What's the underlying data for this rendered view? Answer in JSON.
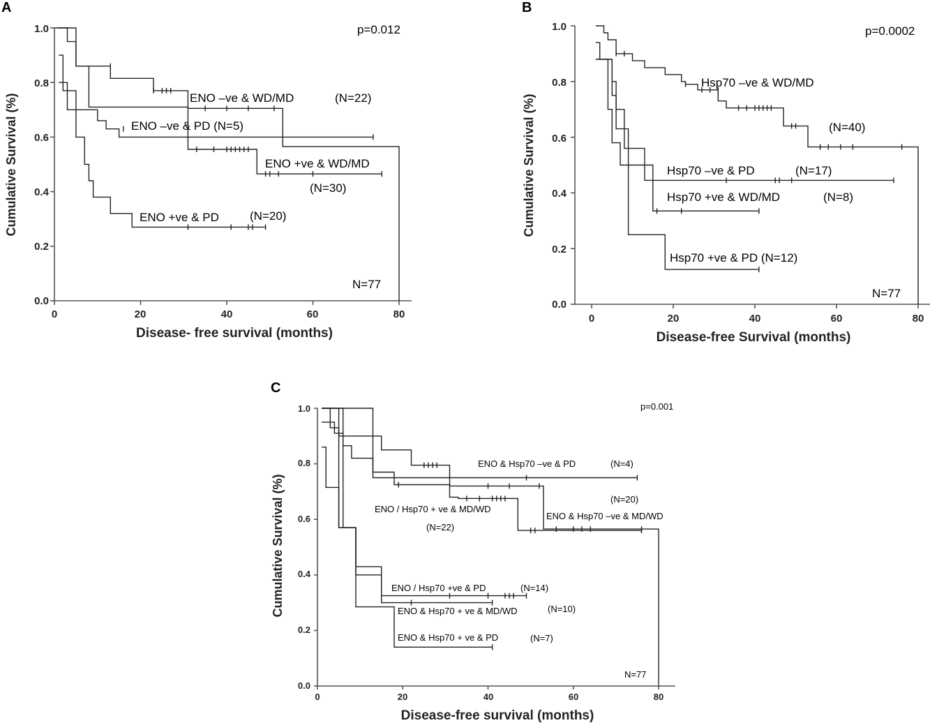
{
  "chart_data": [
    {
      "id": "A",
      "type": "line",
      "step": true,
      "panel_label": "A",
      "xlabel": "Disease- free survival (months)",
      "ylabel": "Cumulative Survival (%)",
      "xlim": [
        0,
        80
      ],
      "ylim": [
        0,
        1
      ],
      "xticks": [
        "0",
        "20",
        "40",
        "60",
        "80"
      ],
      "yticks": [
        "0.0",
        "0.2",
        "0.4",
        "0.6",
        "0.8",
        "1.0"
      ],
      "annotations": [
        "p=0.012",
        "N=77",
        "ENO –ve & WD/MD",
        "(N=22)",
        "ENO –ve & PD (N=5)",
        "ENO +ve & WD/MD",
        "(N=30)",
        "ENO +ve & PD",
        "(N=20)"
      ],
      "series": [
        {
          "x": [
            0,
            3,
            3,
            5,
            5,
            13,
            13,
            23,
            23,
            31,
            31,
            53,
            53,
            80,
            80
          ],
          "y": [
            1.0,
            1.0,
            0.95,
            0.95,
            0.86,
            0.86,
            0.815,
            0.815,
            0.77,
            0.77,
            0.705,
            0.705,
            0.565,
            0.565,
            0.0
          ],
          "censor": [
            [
              13,
              0.86
            ],
            [
              23,
              0.77
            ],
            [
              25,
              0.77
            ],
            [
              26,
              0.77
            ],
            [
              27,
              0.77
            ],
            [
              35,
              0.705
            ],
            [
              40,
              0.705
            ],
            [
              45,
              0.705
            ],
            [
              51,
              0.705
            ]
          ]
        },
        {
          "x": [
            1,
            3,
            3,
            10,
            10,
            12,
            12,
            15,
            15,
            74
          ],
          "y": [
            0.8,
            0.8,
            0.7,
            0.7,
            0.66,
            0.66,
            0.63,
            0.63,
            0.6,
            0.6
          ],
          "censor": [
            [
              16,
              0.63
            ],
            [
              74,
              0.6
            ]
          ]
        },
        {
          "x": [
            1,
            5,
            5,
            8,
            8,
            31,
            31,
            47,
            47,
            76
          ],
          "y": [
            1.0,
            1.0,
            0.86,
            0.86,
            0.71,
            0.71,
            0.555,
            0.555,
            0.465,
            0.465
          ],
          "censor": [
            [
              33,
              0.555
            ],
            [
              37,
              0.555
            ],
            [
              40,
              0.555
            ],
            [
              41,
              0.555
            ],
            [
              42,
              0.555
            ],
            [
              43,
              0.555
            ],
            [
              44,
              0.555
            ],
            [
              45,
              0.555
            ],
            [
              49,
              0.465
            ],
            [
              50,
              0.465
            ],
            [
              52,
              0.465
            ],
            [
              60,
              0.465
            ],
            [
              76,
              0.465
            ]
          ]
        },
        {
          "x": [
            1,
            2,
            2,
            5,
            5,
            7,
            7,
            8,
            8,
            9,
            9,
            13,
            13,
            18,
            18,
            49
          ],
          "y": [
            0.9,
            0.9,
            0.77,
            0.77,
            0.6,
            0.6,
            0.5,
            0.5,
            0.44,
            0.44,
            0.38,
            0.38,
            0.32,
            0.32,
            0.27,
            0.27
          ],
          "censor": [
            [
              31,
              0.27
            ],
            [
              41,
              0.27
            ],
            [
              45,
              0.27
            ],
            [
              46,
              0.27
            ],
            [
              49,
              0.27
            ]
          ]
        }
      ]
    },
    {
      "id": "B",
      "type": "line",
      "step": true,
      "panel_label": "B",
      "xlabel": "Disease-free Survival (months)",
      "ylabel": "Cumulative Survival (%)",
      "xlim": [
        0,
        80
      ],
      "ylim": [
        0,
        1
      ],
      "xticks": [
        "0",
        "20",
        "40",
        "60",
        "80"
      ],
      "yticks": [
        "0.0",
        "0.2",
        "0.4",
        "0.6",
        "0.8",
        "1.0"
      ],
      "annotations": [
        "p=0.0002",
        "N=77",
        "Hsp70 –ve & WD/MD",
        "(N=40)",
        "Hsp70 –ve & PD",
        "(N=17)",
        "Hsp70 +ve & WD/MD",
        "(N=8)",
        "Hsp70 +ve & PD (N=12)"
      ],
      "series": [
        {
          "x": [
            1,
            3,
            3,
            4,
            4,
            6,
            6,
            10,
            10,
            13,
            13,
            18,
            18,
            22,
            22,
            23,
            23,
            26,
            26,
            31,
            31,
            33,
            33,
            47,
            47,
            53,
            53,
            80,
            80
          ],
          "y": [
            1.0,
            1.0,
            0.975,
            0.975,
            0.95,
            0.95,
            0.9,
            0.9,
            0.875,
            0.875,
            0.85,
            0.85,
            0.825,
            0.825,
            0.8,
            0.8,
            0.79,
            0.79,
            0.77,
            0.77,
            0.73,
            0.73,
            0.705,
            0.705,
            0.64,
            0.64,
            0.565,
            0.565,
            0.0
          ],
          "censor": [
            [
              6,
              0.9
            ],
            [
              8,
              0.9
            ],
            [
              23,
              0.79
            ],
            [
              27,
              0.77
            ],
            [
              29,
              0.77
            ],
            [
              31,
              0.77
            ],
            [
              36,
              0.705
            ],
            [
              38,
              0.705
            ],
            [
              40,
              0.705
            ],
            [
              41,
              0.705
            ],
            [
              42,
              0.705
            ],
            [
              43,
              0.705
            ],
            [
              44,
              0.705
            ],
            [
              49,
              0.64
            ],
            [
              50,
              0.64
            ],
            [
              56,
              0.565
            ],
            [
              58,
              0.565
            ],
            [
              61,
              0.565
            ],
            [
              64,
              0.565
            ],
            [
              76,
              0.565
            ]
          ]
        },
        {
          "x": [
            1,
            2,
            2,
            5,
            5,
            6,
            6,
            8,
            8,
            13,
            13,
            74
          ],
          "y": [
            0.94,
            0.94,
            0.88,
            0.88,
            0.8,
            0.8,
            0.7,
            0.7,
            0.56,
            0.56,
            0.445,
            0.445
          ],
          "censor": [
            [
              33,
              0.445
            ],
            [
              45,
              0.445
            ],
            [
              46,
              0.445
            ],
            [
              49,
              0.445
            ],
            [
              74,
              0.445
            ]
          ]
        },
        {
          "x": [
            1,
            5,
            5,
            6,
            6,
            9,
            9,
            15,
            15,
            41
          ],
          "y": [
            0.88,
            0.88,
            0.75,
            0.75,
            0.63,
            0.63,
            0.5,
            0.5,
            0.335,
            0.335
          ],
          "censor": [
            [
              16,
              0.335
            ],
            [
              22,
              0.335
            ],
            [
              41,
              0.335
            ]
          ]
        },
        {
          "x": [
            1,
            4,
            4,
            5,
            5,
            7,
            7,
            9,
            9,
            18,
            18,
            41
          ],
          "y": [
            0.88,
            0.88,
            0.7,
            0.7,
            0.58,
            0.58,
            0.5,
            0.5,
            0.25,
            0.25,
            0.125,
            0.125
          ],
          "censor": [
            [
              41,
              0.125
            ]
          ]
        }
      ]
    },
    {
      "id": "C",
      "type": "line",
      "step": true,
      "panel_label": "C",
      "xlabel": "Disease-free survival (months)",
      "ylabel": "Cumulative Survival (%)",
      "xlim": [
        0,
        80
      ],
      "ylim": [
        0,
        1
      ],
      "xticks": [
        "0",
        "20",
        "40",
        "60",
        "80"
      ],
      "yticks": [
        "0.0",
        "0.2",
        "0.4",
        "0.6",
        "0.8",
        "1.0"
      ],
      "annotations": [
        "p=0.001",
        "N=77",
        "ENO & Hsp70 –ve & PD",
        "(N=4)",
        "(N=20)",
        "ENO & Hsp70 –ve & MD/WD",
        "ENO / Hsp70 + ve & MD/WD",
        "(N=22)",
        "ENO / Hsp70 +ve & PD",
        "(N=14)",
        "ENO & Hsp70 + ve & MD/WD",
        "(N=10)",
        "ENO & Hsp70 + ve & PD",
        "(N=7)"
      ],
      "series": [
        {
          "x": [
            1,
            13,
            13,
            75
          ],
          "y": [
            1.0,
            1.0,
            0.75,
            0.75
          ],
          "censor": [
            [
              49,
              0.75
            ],
            [
              75,
              0.75
            ]
          ]
        },
        {
          "x": [
            1,
            5,
            5,
            15,
            15,
            22,
            22,
            31,
            31,
            53,
            53,
            80,
            80
          ],
          "y": [
            1.0,
            1.0,
            0.9,
            0.9,
            0.85,
            0.85,
            0.795,
            0.795,
            0.72,
            0.72,
            0.565,
            0.565,
            0.0
          ],
          "censor": [
            [
              25,
              0.795
            ],
            [
              26,
              0.795
            ],
            [
              27,
              0.795
            ],
            [
              28,
              0.795
            ],
            [
              40,
              0.72
            ],
            [
              45,
              0.72
            ],
            [
              52,
              0.72
            ],
            [
              56,
              0.565
            ],
            [
              60,
              0.565
            ],
            [
              62,
              0.565
            ],
            [
              64,
              0.565
            ],
            [
              76,
              0.565
            ]
          ]
        },
        {
          "x": [
            1,
            4,
            4,
            6,
            6,
            8,
            8,
            13,
            13,
            18,
            18,
            31,
            31,
            33,
            33,
            47,
            47,
            76
          ],
          "y": [
            0.95,
            0.95,
            0.91,
            0.91,
            0.865,
            0.865,
            0.82,
            0.82,
            0.77,
            0.77,
            0.725,
            0.725,
            0.68,
            0.68,
            0.675,
            0.675,
            0.56,
            0.56
          ],
          "censor": [
            [
              19,
              0.725
            ],
            [
              35,
              0.675
            ],
            [
              38,
              0.675
            ],
            [
              41,
              0.675
            ],
            [
              42,
              0.675
            ],
            [
              43,
              0.675
            ],
            [
              44,
              0.675
            ],
            [
              50,
              0.56
            ],
            [
              51,
              0.56
            ],
            [
              76,
              0.56
            ]
          ]
        },
        {
          "x": [
            1,
            3,
            3,
            5,
            5,
            9,
            9,
            15,
            15,
            49
          ],
          "y": [
            1.0,
            1.0,
            0.93,
            0.93,
            0.57,
            0.57,
            0.43,
            0.43,
            0.325,
            0.325
          ],
          "censor": [
            [
              31,
              0.325
            ],
            [
              40,
              0.325
            ],
            [
              44,
              0.325
            ],
            [
              45,
              0.325
            ],
            [
              46,
              0.325
            ],
            [
              49,
              0.325
            ]
          ]
        },
        {
          "x": [
            1,
            6,
            6,
            9,
            9,
            15,
            15,
            41
          ],
          "y": [
            1.0,
            1.0,
            0.57,
            0.57,
            0.4,
            0.4,
            0.3,
            0.3
          ],
          "censor": [
            [
              22,
              0.3
            ],
            [
              41,
              0.3
            ]
          ]
        },
        {
          "x": [
            1,
            2,
            2,
            5,
            5,
            9,
            9,
            18,
            18,
            41
          ],
          "y": [
            0.86,
            0.86,
            0.715,
            0.715,
            0.57,
            0.57,
            0.285,
            0.285,
            0.14,
            0.14
          ],
          "censor": [
            [
              41,
              0.14
            ]
          ]
        }
      ]
    }
  ]
}
